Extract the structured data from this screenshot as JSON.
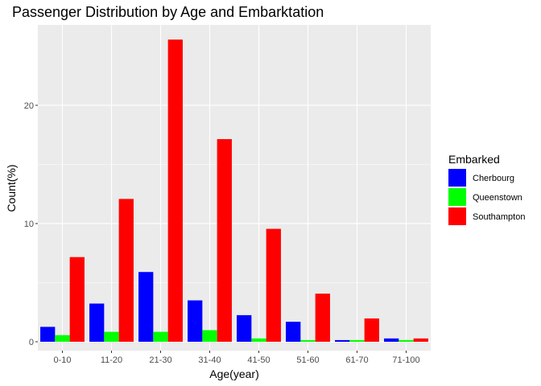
{
  "chart_data": {
    "type": "bar",
    "title": "Passenger Distribution by Age and Embarktation",
    "xlabel": "Age(year)",
    "ylabel": "Count(%)",
    "categories": [
      "0-10",
      "11-20",
      "21-30",
      "31-40",
      "41-50",
      "51-60",
      "61-70",
      "71-100"
    ],
    "ylim": [
      -0.75,
      26.8
    ],
    "yticks": [
      0,
      10,
      20
    ],
    "grid": true,
    "legend_title": "Embarked",
    "legend_position": "right",
    "series": [
      {
        "name": "Cherbourg",
        "color": "#0000ff",
        "values": [
          1.26,
          3.23,
          5.9,
          3.5,
          2.25,
          1.69,
          0.14,
          0.28
        ]
      },
      {
        "name": "Queenstown",
        "color": "#00ff00",
        "values": [
          0.56,
          0.84,
          0.84,
          0.98,
          0.28,
          0.14,
          0.14,
          0.14
        ]
      },
      {
        "name": "Southampton",
        "color": "#ff0000",
        "values": [
          7.16,
          12.08,
          25.56,
          17.14,
          9.55,
          4.07,
          1.97,
          0.28
        ]
      }
    ]
  }
}
